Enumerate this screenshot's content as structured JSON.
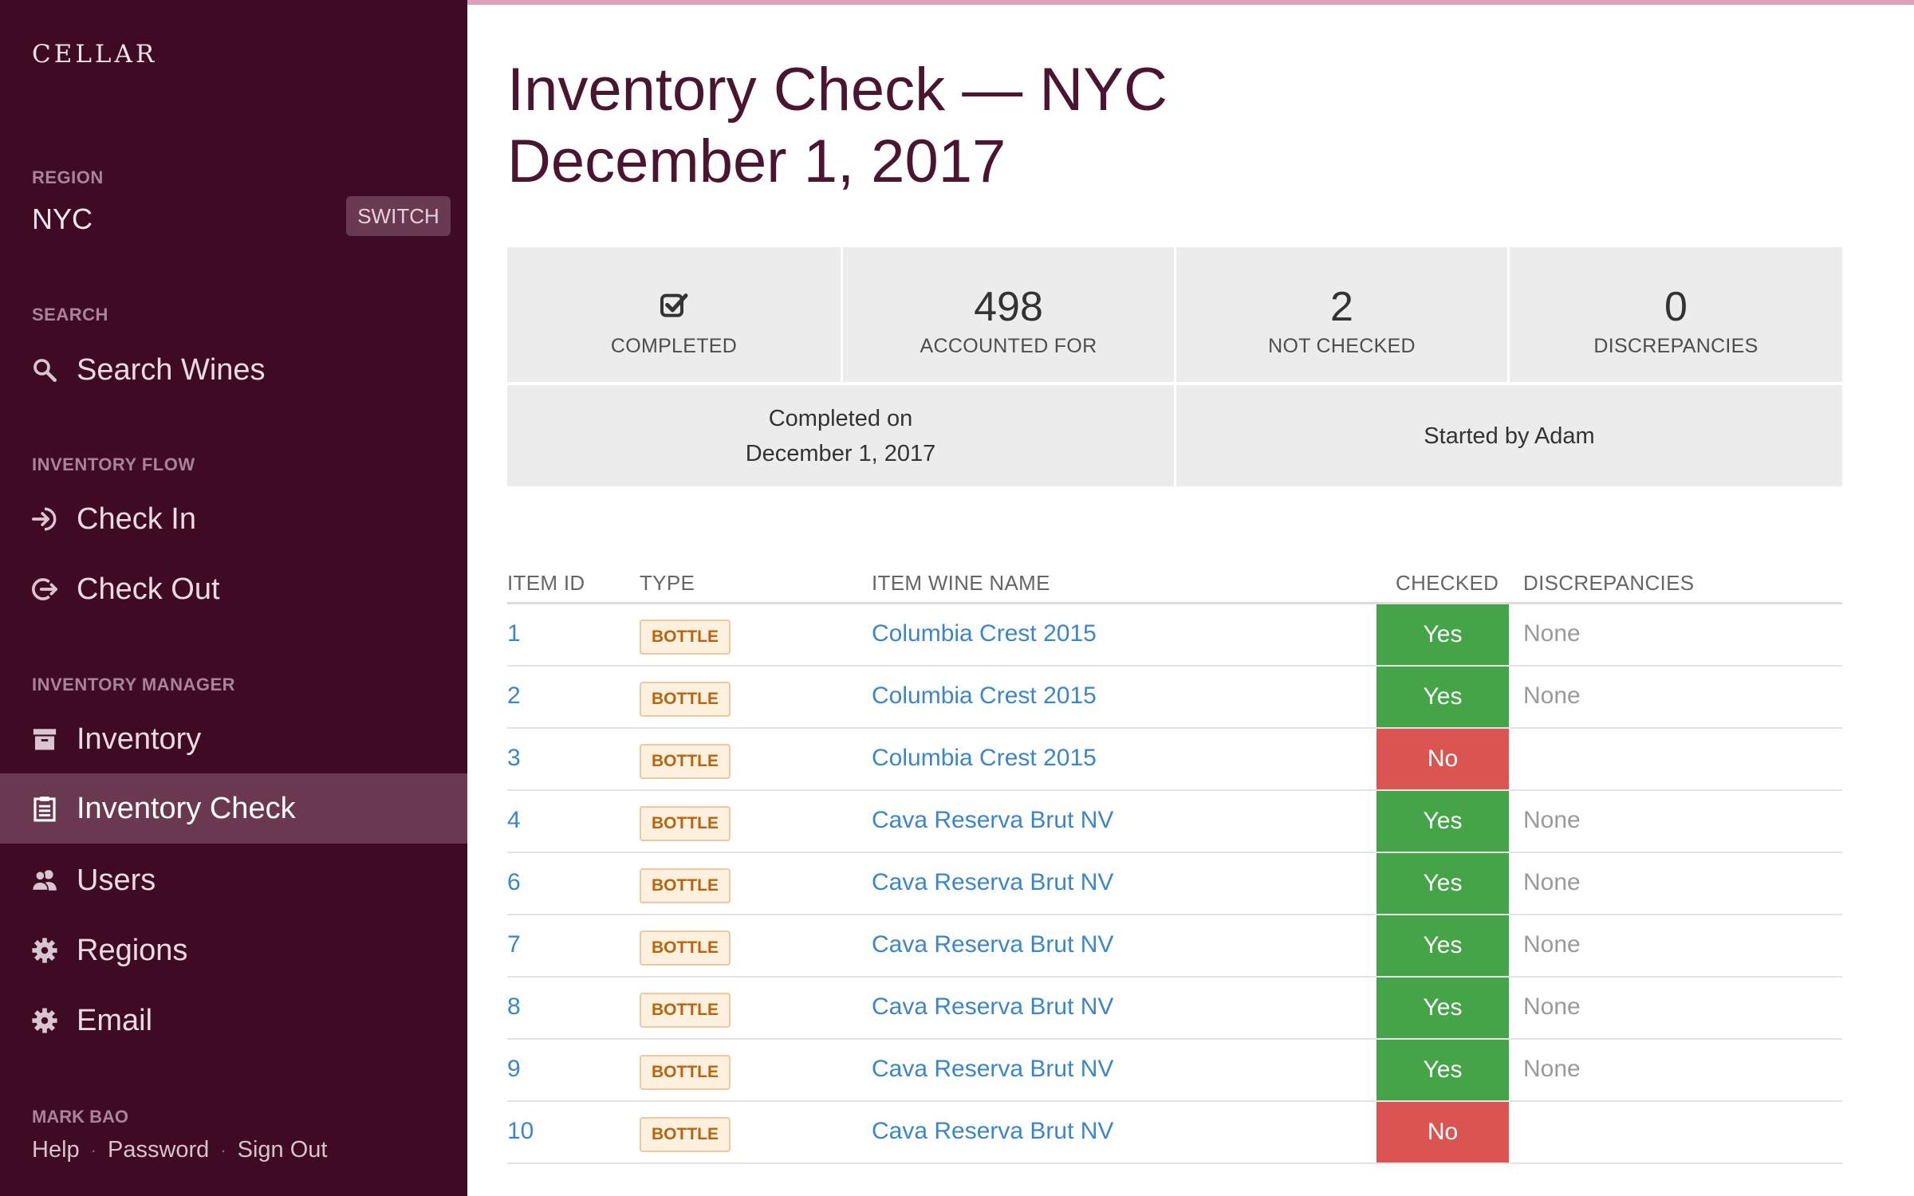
{
  "sidebar": {
    "brand": "CELLAR",
    "region": {
      "heading": "REGION",
      "value": "NYC",
      "switch_label": "SWITCH"
    },
    "search": {
      "heading": "SEARCH",
      "item": {
        "label": "Search Wines",
        "icon": "search-icon"
      }
    },
    "inventory_flow": {
      "heading": "INVENTORY FLOW",
      "items": [
        {
          "label": "Check In",
          "icon": "check-in-icon"
        },
        {
          "label": "Check Out",
          "icon": "check-out-icon"
        }
      ]
    },
    "inventory_manager": {
      "heading": "INVENTORY MANAGER",
      "items": [
        {
          "label": "Inventory",
          "icon": "archive-icon",
          "active": false
        },
        {
          "label": "Inventory Check",
          "icon": "clipboard-icon",
          "active": true
        },
        {
          "label": "Users",
          "icon": "users-icon",
          "active": false
        },
        {
          "label": "Regions",
          "icon": "gear-icon",
          "active": false
        },
        {
          "label": "Email",
          "icon": "gear-icon",
          "active": false
        }
      ]
    },
    "user": {
      "name": "MARK BAO",
      "links": [
        "Help",
        "Password",
        "Sign Out"
      ],
      "separator": "·"
    }
  },
  "page": {
    "title_line1": "Inventory Check — NYC",
    "title_line2": "December 1, 2017"
  },
  "stats": {
    "completed": {
      "icon": "checkbox-checked-icon",
      "label": "COMPLETED"
    },
    "accounted_for": {
      "value": "498",
      "label": "ACCOUNTED FOR"
    },
    "not_checked": {
      "value": "2",
      "label": "NOT CHECKED"
    },
    "discrepancies": {
      "value": "0",
      "label": "DISCREPANCIES"
    },
    "completed_on": {
      "line1": "Completed on",
      "line2": "December 1, 2017"
    },
    "started_by": "Started by Adam"
  },
  "table": {
    "headers": {
      "item_id": "ITEM ID",
      "type": "TYPE",
      "wine_name": "ITEM WINE NAME",
      "checked": "CHECKED",
      "discrepancies": "DISCREPANCIES"
    },
    "rows": [
      {
        "id": "1",
        "type": "BOTTLE",
        "name": "Columbia Crest 2015",
        "checked": "Yes",
        "discrepancies": "None"
      },
      {
        "id": "2",
        "type": "BOTTLE",
        "name": "Columbia Crest 2015",
        "checked": "Yes",
        "discrepancies": "None"
      },
      {
        "id": "3",
        "type": "BOTTLE",
        "name": "Columbia Crest 2015",
        "checked": "No",
        "discrepancies": ""
      },
      {
        "id": "4",
        "type": "BOTTLE",
        "name": "Cava Reserva Brut NV",
        "checked": "Yes",
        "discrepancies": "None"
      },
      {
        "id": "6",
        "type": "BOTTLE",
        "name": "Cava Reserva Brut NV",
        "checked": "Yes",
        "discrepancies": "None"
      },
      {
        "id": "7",
        "type": "BOTTLE",
        "name": "Cava Reserva Brut NV",
        "checked": "Yes",
        "discrepancies": "None"
      },
      {
        "id": "8",
        "type": "BOTTLE",
        "name": "Cava Reserva Brut NV",
        "checked": "Yes",
        "discrepancies": "None"
      },
      {
        "id": "9",
        "type": "BOTTLE",
        "name": "Cava Reserva Brut NV",
        "checked": "Yes",
        "discrepancies": "None"
      },
      {
        "id": "10",
        "type": "BOTTLE",
        "name": "Cava Reserva Brut NV",
        "checked": "No",
        "discrepancies": ""
      }
    ]
  },
  "colors": {
    "sidebar_bg": "#3f0a23",
    "sidebar_active": "#6a3850",
    "top_accent": "#d9a1be",
    "title": "#4a1530",
    "link": "#3b86c9",
    "checked_yes": "#45a447",
    "checked_no": "#da5451",
    "badge_text": "#b7650f"
  }
}
